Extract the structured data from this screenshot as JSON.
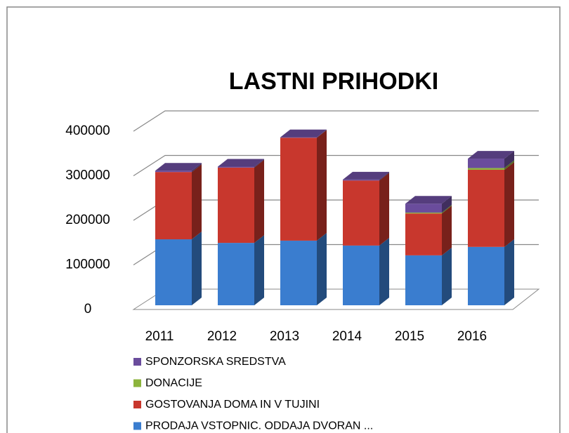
{
  "chart_data": {
    "type": "bar3d_stacked",
    "title": "LASTNI PRIHODKI",
    "categories": [
      "2011",
      "2012",
      "2013",
      "2014",
      "2015",
      "2016"
    ],
    "series": [
      {
        "name": "PRODAJA VSTOPNIC. ODDAJA DVORAN ...",
        "color": "#3a7dcf",
        "values": [
          148000,
          140000,
          145000,
          134000,
          112000,
          131000
        ]
      },
      {
        "name": "GOSTOVANJA DOMA IN  V TUJINI",
        "color": "#c8372d",
        "values": [
          151000,
          169000,
          231000,
          146000,
          94000,
          173000
        ]
      },
      {
        "name": "DONACIJE",
        "color": "#8cb43c",
        "values": [
          0,
          0,
          0,
          0,
          2000,
          4000
        ]
      },
      {
        "name": "SPONZORSKA SREDSTVA",
        "color": "#6a4c9c",
        "values": [
          3000,
          2000,
          1000,
          2000,
          20000,
          21000
        ]
      }
    ],
    "ylim": [
      0,
      400000
    ],
    "yticks": [
      0,
      100000,
      200000,
      300000,
      400000
    ],
    "grid": true
  }
}
